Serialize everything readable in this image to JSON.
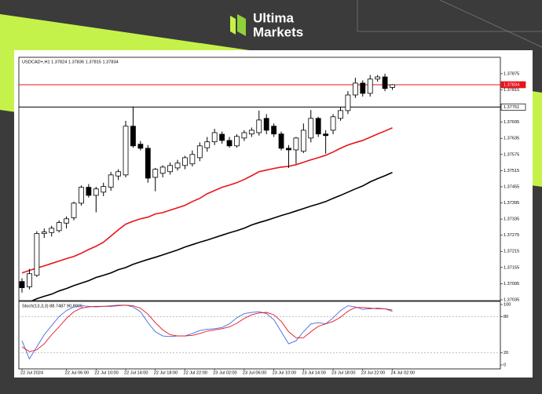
{
  "brand": {
    "line1": "Ultima",
    "line2": "Markets"
  },
  "chart_data": [
    {
      "type": "candlestick",
      "title": "USDCAD+,H1 1.37824 1.37836 1.37815 1.37834",
      "categories": [
        "22 Jul 2024",
        null,
        null,
        null,
        null,
        null,
        "22 Jul 06:00",
        null,
        null,
        null,
        "22 Jul 10:00",
        null,
        null,
        null,
        "22 Jul 14:00",
        null,
        null,
        null,
        "22 Jul 18:00",
        null,
        null,
        null,
        "22 Jul 22:00",
        null,
        null,
        null,
        "23 Jul 02:00",
        null,
        null,
        null,
        "23 Jul 06:00",
        null,
        null,
        null,
        "23 Jul 10:00",
        null,
        null,
        null,
        "23 Jul 14:00",
        null,
        null,
        null,
        "23 Jul 18:00",
        null,
        null,
        null,
        "23 Jul 22:00",
        null,
        null,
        null,
        "24 Jul 02:00"
      ],
      "open": [
        1.37103,
        1.37083,
        1.37126,
        1.37281,
        1.37285,
        1.37292,
        1.3732,
        1.3734,
        1.37394,
        1.37453,
        1.37423,
        1.37435,
        1.37453,
        1.37495,
        1.37499,
        1.3768,
        1.37613,
        1.37598,
        1.3749,
        1.37505,
        1.37511,
        1.37525,
        1.37534,
        1.3754,
        1.37563,
        1.376,
        1.37622,
        1.3765,
        1.37627,
        1.37607,
        1.37636,
        1.37651,
        1.37656,
        1.37709,
        1.3768,
        1.37651,
        1.37598,
        1.37592,
        1.37587,
        1.37636,
        1.37709,
        1.37651,
        1.37665,
        1.37709,
        1.37738,
        1.37796,
        1.3784,
        1.37802,
        1.37855,
        1.37863,
        1.37824
      ],
      "high": [
        1.37115,
        1.3715,
        1.3729,
        1.373,
        1.3731,
        1.3733,
        1.37345,
        1.374,
        1.3746,
        1.37465,
        1.37455,
        1.3747,
        1.3751,
        1.3752,
        1.377,
        1.37753,
        1.37625,
        1.3761,
        1.37525,
        1.37535,
        1.37545,
        1.37555,
        1.3757,
        1.3759,
        1.3762,
        1.3764,
        1.3767,
        1.3766,
        1.3764,
        1.3765,
        1.37665,
        1.37675,
        1.37738,
        1.37725,
        1.3769,
        1.3766,
        1.3761,
        1.3764,
        1.3769,
        1.3774,
        1.37715,
        1.37665,
        1.37725,
        1.3775,
        1.3781,
        1.3786,
        1.3785,
        1.3787,
        1.3787,
        1.37875,
        1.37836
      ],
      "low": [
        1.37062,
        1.37074,
        1.3712,
        1.37265,
        1.3727,
        1.37285,
        1.373,
        1.3733,
        1.37385,
        1.37415,
        1.3736,
        1.3742,
        1.3744,
        1.3748,
        1.3749,
        1.376,
        1.3759,
        1.3747,
        1.37438,
        1.3749,
        1.375,
        1.37515,
        1.3752,
        1.3753,
        1.3755,
        1.37585,
        1.3761,
        1.37615,
        1.376,
        1.376,
        1.37625,
        1.3764,
        1.37645,
        1.3765,
        1.3764,
        1.3759,
        1.37525,
        1.3754,
        1.3758,
        1.3762,
        1.3764,
        1.37578,
        1.3765,
        1.377,
        1.37725,
        1.37785,
        1.3779,
        1.3779,
        1.37845,
        1.3781,
        1.37815
      ],
      "close": [
        1.3708,
        1.37132,
        1.37281,
        1.37287,
        1.37301,
        1.37322,
        1.37336,
        1.37394,
        1.37453,
        1.37423,
        1.37447,
        1.37456,
        1.37499,
        1.37511,
        1.3768,
        1.37607,
        1.37598,
        1.37487,
        1.3752,
        1.37528,
        1.37534,
        1.37543,
        1.37563,
        1.37575,
        1.37607,
        1.37622,
        1.37656,
        1.37627,
        1.37607,
        1.37642,
        1.37656,
        1.37665,
        1.37703,
        1.37665,
        1.37651,
        1.37598,
        1.37592,
        1.37636,
        1.37665,
        1.37709,
        1.37651,
        1.37645,
        1.37715,
        1.37738,
        1.37796,
        1.3784,
        1.37802,
        1.37855,
        1.37863,
        1.3782,
        1.37834
      ],
      "up_color": "#ffffff",
      "down_color": "#000000",
      "moving_averages": [
        {
          "color": "#e8141b",
          "values": [
            1.37135,
            1.37144,
            1.37153,
            1.37161,
            1.3717,
            1.37179,
            1.37188,
            1.37196,
            1.37208,
            1.37222,
            1.37234,
            1.37249,
            1.37272,
            1.37295,
            1.37316,
            1.37327,
            1.37336,
            1.37342,
            1.37354,
            1.37359,
            1.37368,
            1.37377,
            1.37386,
            1.374,
            1.37412,
            1.37429,
            1.37441,
            1.37453,
            1.37461,
            1.3747,
            1.37482,
            1.37496,
            1.37511,
            1.37517,
            1.37523,
            1.37528,
            1.37531,
            1.37537,
            1.37546,
            1.37555,
            1.37563,
            1.37572,
            1.37584,
            1.37598,
            1.3761,
            1.37619,
            1.37627,
            1.37639,
            1.37651,
            1.37662,
            1.37674
          ]
        },
        {
          "color": "#000000",
          "values": [
            1.37019,
            1.37027,
            1.37039,
            1.37048,
            1.37056,
            1.37068,
            1.37077,
            1.37088,
            1.37097,
            1.37106,
            1.37118,
            1.37126,
            1.37135,
            1.37147,
            1.37155,
            1.37167,
            1.37176,
            1.37185,
            1.37193,
            1.37202,
            1.37211,
            1.3722,
            1.37231,
            1.3724,
            1.37249,
            1.37257,
            1.37266,
            1.37275,
            1.37284,
            1.37292,
            1.37301,
            1.37313,
            1.37322,
            1.3733,
            1.37339,
            1.37348,
            1.37356,
            1.37365,
            1.37374,
            1.37383,
            1.37391,
            1.374,
            1.37412,
            1.37423,
            1.37435,
            1.37447,
            1.37458,
            1.37473,
            1.37485,
            1.37496,
            1.37508
          ]
        }
      ],
      "price_lines": [
        {
          "value": 1.37834,
          "color": "#e8141b"
        },
        {
          "value": 1.37751,
          "color": "#000000"
        }
      ],
      "ylim": [
        1.37035,
        1.37933
      ],
      "yticks": [
        1.37875,
        1.37815,
        1.37695,
        1.37635,
        1.37575,
        1.37515,
        1.37455,
        1.37395,
        1.37335,
        1.37275,
        1.37215,
        1.37155,
        1.37095,
        1.37035
      ]
    },
    {
      "type": "line",
      "title": "Stoch(13,3,3) 88.7487 90.8906",
      "series": [
        {
          "color": "#4169e1",
          "values": [
            40,
            10,
            30,
            50,
            65,
            80,
            90,
            96,
            98,
            97,
            96,
            97,
            98,
            99,
            99,
            96,
            88,
            70,
            55,
            48,
            47,
            48,
            48,
            52,
            57,
            59,
            60,
            62,
            68,
            78,
            85,
            87,
            88,
            85,
            75,
            55,
            35,
            40,
            55,
            68,
            70,
            68,
            78,
            90,
            98,
            96,
            92,
            93,
            94,
            93,
            88.7487
          ]
        },
        {
          "color": "#e8141b",
          "values": [
            30,
            22,
            25,
            35,
            50,
            63,
            77,
            88,
            94,
            96,
            97,
            97,
            97,
            98,
            99,
            98,
            94,
            84,
            70,
            58,
            50,
            48,
            48,
            49,
            52,
            56,
            58,
            60,
            63,
            69,
            77,
            83,
            86,
            87,
            83,
            72,
            55,
            45,
            45,
            55,
            64,
            68,
            72,
            79,
            89,
            95,
            95,
            94,
            93,
            93,
            90.8906
          ]
        }
      ],
      "levels": [
        80,
        20
      ],
      "ylim": [
        0,
        100
      ],
      "yticks": [
        100,
        80,
        20,
        0
      ]
    }
  ]
}
